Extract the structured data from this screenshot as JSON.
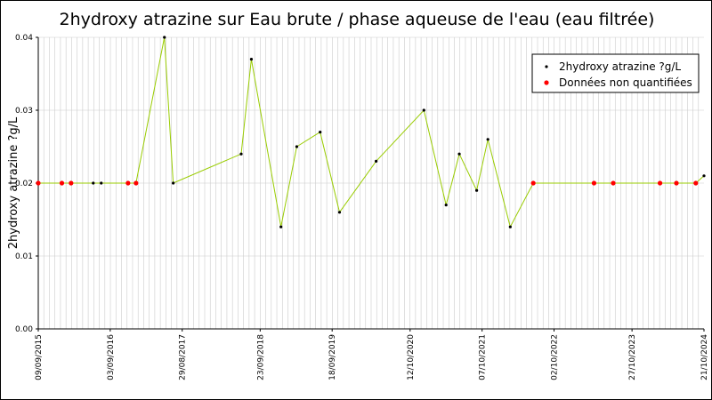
{
  "chart_data": {
    "type": "line",
    "title": "2hydroxy atrazine sur Eau brute / phase aqueuse de l'eau (eau filtrée)",
    "xlabel": "",
    "ylabel": "2hydroxy atrazine ?g/L",
    "ylim": [
      0,
      0.04
    ],
    "yticks": [
      "0.00",
      "0.01",
      "0.02",
      "0.03",
      "0.04"
    ],
    "xlim": [
      "2015-09-09",
      "2024-10-21"
    ],
    "xticks": [
      "09/09/2015",
      "03/09/2016",
      "29/08/2017",
      "23/09/2018",
      "18/09/2019",
      "12/10/2020",
      "07/10/2021",
      "02/10/2022",
      "27/10/2023",
      "21/10/2024"
    ],
    "grid": true,
    "legend_position": "top-right",
    "colors": {
      "line": "#99cc00",
      "quantified": "#000000",
      "non_quantified": "#ff0000",
      "grid": "#cccccc"
    },
    "series": [
      {
        "name": "2hydroxy atrazine ?g/L"
      },
      {
        "name": "Données non quantifiées"
      }
    ],
    "points": [
      {
        "date": "2015-09-09",
        "value": 0.02,
        "quantified": false
      },
      {
        "date": "2016-01-05",
        "value": 0.02,
        "quantified": false
      },
      {
        "date": "2016-02-20",
        "value": 0.02,
        "quantified": false
      },
      {
        "date": "2016-06-10",
        "value": 0.02,
        "quantified": true
      },
      {
        "date": "2016-07-20",
        "value": 0.02,
        "quantified": true
      },
      {
        "date": "2016-12-01",
        "value": 0.02,
        "quantified": false
      },
      {
        "date": "2017-01-10",
        "value": 0.02,
        "quantified": false
      },
      {
        "date": "2017-06-01",
        "value": 0.04,
        "quantified": true
      },
      {
        "date": "2017-07-15",
        "value": 0.02,
        "quantified": true
      },
      {
        "date": "2018-06-20",
        "value": 0.024,
        "quantified": true
      },
      {
        "date": "2018-08-10",
        "value": 0.037,
        "quantified": true
      },
      {
        "date": "2019-01-05",
        "value": 0.014,
        "quantified": true
      },
      {
        "date": "2019-03-25",
        "value": 0.025,
        "quantified": true
      },
      {
        "date": "2019-07-20",
        "value": 0.027,
        "quantified": true
      },
      {
        "date": "2019-10-25",
        "value": 0.016,
        "quantified": true
      },
      {
        "date": "2020-04-25",
        "value": 0.023,
        "quantified": true
      },
      {
        "date": "2020-12-20",
        "value": 0.03,
        "quantified": true
      },
      {
        "date": "2021-04-10",
        "value": 0.017,
        "quantified": true
      },
      {
        "date": "2021-06-15",
        "value": 0.024,
        "quantified": true
      },
      {
        "date": "2021-09-10",
        "value": 0.019,
        "quantified": true
      },
      {
        "date": "2021-11-05",
        "value": 0.026,
        "quantified": true
      },
      {
        "date": "2022-02-25",
        "value": 0.014,
        "quantified": true
      },
      {
        "date": "2022-06-20",
        "value": 0.02,
        "quantified": false
      },
      {
        "date": "2023-04-20",
        "value": 0.02,
        "quantified": false
      },
      {
        "date": "2023-07-25",
        "value": 0.02,
        "quantified": false
      },
      {
        "date": "2024-03-15",
        "value": 0.02,
        "quantified": false
      },
      {
        "date": "2024-06-05",
        "value": 0.02,
        "quantified": false
      },
      {
        "date": "2024-09-10",
        "value": 0.02,
        "quantified": false
      },
      {
        "date": "2024-10-21",
        "value": 0.021,
        "quantified": true
      }
    ]
  }
}
